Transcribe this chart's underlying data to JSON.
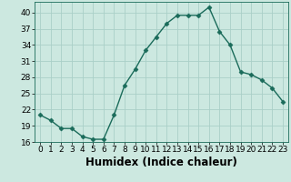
{
  "x": [
    0,
    1,
    2,
    3,
    4,
    5,
    6,
    7,
    8,
    9,
    10,
    11,
    12,
    13,
    14,
    15,
    16,
    17,
    18,
    19,
    20,
    21,
    22,
    23
  ],
  "y": [
    21,
    20,
    18.5,
    18.5,
    17,
    16.5,
    16.5,
    21,
    26.5,
    29.5,
    33,
    35.5,
    38,
    39.5,
    39.5,
    39.5,
    41,
    36.5,
    34,
    29,
    28.5,
    27.5,
    26,
    23.5
  ],
  "ylim": [
    16,
    42
  ],
  "xlim": [
    -0.5,
    23.5
  ],
  "yticks": [
    16,
    19,
    22,
    25,
    28,
    31,
    34,
    37,
    40
  ],
  "xticks": [
    0,
    1,
    2,
    3,
    4,
    5,
    6,
    7,
    8,
    9,
    10,
    11,
    12,
    13,
    14,
    15,
    16,
    17,
    18,
    19,
    20,
    21,
    22,
    23
  ],
  "xlabel": "Humidex (Indice chaleur)",
  "line_color": "#1a6b5a",
  "marker": "D",
  "marker_size": 2.5,
  "bg_color": "#cce8e0",
  "grid_color": "#aacfc8",
  "tick_fontsize": 6.5,
  "xlabel_fontsize": 8.5
}
